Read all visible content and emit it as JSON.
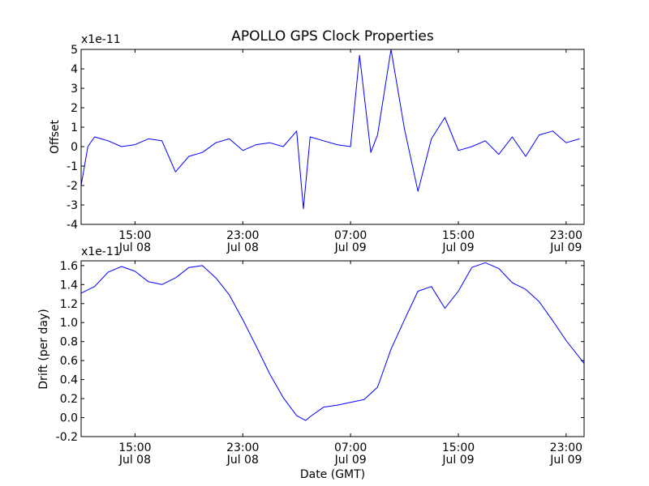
{
  "figure": {
    "title": "APOLLO GPS Clock Properties",
    "xlabel": "Date (GMT)"
  },
  "chart_data": [
    {
      "type": "line",
      "ylabel": "Offset",
      "offset_text": "x1e-11",
      "ylim": [
        -4,
        5
      ],
      "yticks": [
        -4,
        -3,
        -2,
        -1,
        0,
        1,
        2,
        3,
        4,
        5
      ],
      "xlim": [
        "Jul 08 11:00",
        "Jul 10 00:20"
      ],
      "xticks": [
        {
          "time": "15:00",
          "date": "Jul 08",
          "t": "Jul 08 15:00"
        },
        {
          "time": "23:00",
          "date": "Jul 08",
          "t": "Jul 08 23:00"
        },
        {
          "time": "07:00",
          "date": "Jul 09",
          "t": "Jul 09 07:00"
        },
        {
          "time": "15:00",
          "date": "Jul 09",
          "t": "Jul 09 15:00"
        },
        {
          "time": "23:00",
          "date": "Jul 09",
          "t": "Jul 09 23:00"
        }
      ],
      "series_color": "#0000ff",
      "series": [
        {
          "x": [
            "Jul 08 11:00",
            "Jul 08 11:30",
            "Jul 08 12:00",
            "Jul 08 13:00",
            "Jul 08 14:00",
            "Jul 08 15:00",
            "Jul 08 16:00",
            "Jul 08 17:00",
            "Jul 08 18:00",
            "Jul 08 19:00",
            "Jul 08 20:00",
            "Jul 08 21:00",
            "Jul 08 22:00",
            "Jul 08 23:00",
            "Jul 09 00:00",
            "Jul 09 01:00",
            "Jul 09 02:00",
            "Jul 09 03:00",
            "Jul 09 03:30",
            "Jul 09 04:00",
            "Jul 09 05:00",
            "Jul 09 06:00",
            "Jul 09 07:00",
            "Jul 09 07:40",
            "Jul 09 08:30",
            "Jul 09 09:00",
            "Jul 09 10:00",
            "Jul 09 11:00",
            "Jul 09 12:00",
            "Jul 09 13:00",
            "Jul 09 14:00",
            "Jul 09 15:00",
            "Jul 09 16:00",
            "Jul 09 17:00",
            "Jul 09 18:00",
            "Jul 09 19:00",
            "Jul 09 20:00",
            "Jul 09 21:00",
            "Jul 09 22:00",
            "Jul 09 23:00",
            "Jul 10 00:00"
          ],
          "y": [
            -2.0,
            0.0,
            0.5,
            0.3,
            0.0,
            0.1,
            0.4,
            0.3,
            -1.3,
            -0.5,
            -0.3,
            0.2,
            0.4,
            -0.2,
            0.1,
            0.2,
            0.0,
            0.8,
            -3.2,
            0.5,
            0.3,
            0.1,
            0.0,
            4.7,
            -0.3,
            0.6,
            5.0,
            0.9,
            -2.3,
            0.4,
            1.5,
            -0.2,
            0.0,
            0.3,
            -0.4,
            0.5,
            -0.5,
            0.6,
            0.8,
            0.2,
            0.4
          ]
        }
      ]
    },
    {
      "type": "line",
      "ylabel": "Drift (per day)",
      "offset_text": "x1e-11",
      "ylim": [
        -0.2,
        1.65
      ],
      "yticks": [
        -0.2,
        0.0,
        0.2,
        0.4,
        0.6,
        0.8,
        1.0,
        1.2,
        1.4,
        1.6
      ],
      "ytick_labels": [
        "-0.2",
        "0.0",
        "0.2",
        "0.4",
        "0.6",
        "0.8",
        "1.0",
        "1.2",
        "1.4",
        "1.6"
      ],
      "xlim": [
        "Jul 08 11:00",
        "Jul 10 00:20"
      ],
      "xticks": [
        {
          "time": "15:00",
          "date": "Jul 08",
          "t": "Jul 08 15:00"
        },
        {
          "time": "23:00",
          "date": "Jul 08",
          "t": "Jul 08 23:00"
        },
        {
          "time": "07:00",
          "date": "Jul 09",
          "t": "Jul 09 07:00"
        },
        {
          "time": "15:00",
          "date": "Jul 09",
          "t": "Jul 09 15:00"
        },
        {
          "time": "23:00",
          "date": "Jul 09",
          "t": "Jul 09 23:00"
        }
      ],
      "series_color": "#0000ff",
      "series": [
        {
          "x": [
            "Jul 08 11:00",
            "Jul 08 12:00",
            "Jul 08 13:00",
            "Jul 08 14:00",
            "Jul 08 15:00",
            "Jul 08 16:00",
            "Jul 08 17:00",
            "Jul 08 18:00",
            "Jul 08 19:00",
            "Jul 08 20:00",
            "Jul 08 21:00",
            "Jul 08 22:00",
            "Jul 08 23:00",
            "Jul 09 00:00",
            "Jul 09 01:00",
            "Jul 09 02:00",
            "Jul 09 03:00",
            "Jul 09 03:40",
            "Jul 09 04:00",
            "Jul 09 05:00",
            "Jul 09 06:00",
            "Jul 09 07:00",
            "Jul 09 08:00",
            "Jul 09 09:00",
            "Jul 09 10:00",
            "Jul 09 11:00",
            "Jul 09 12:00",
            "Jul 09 13:00",
            "Jul 09 14:00",
            "Jul 09 15:00",
            "Jul 09 16:00",
            "Jul 09 17:00",
            "Jul 09 18:00",
            "Jul 09 19:00",
            "Jul 09 20:00",
            "Jul 09 21:00",
            "Jul 09 22:00",
            "Jul 09 23:00",
            "Jul 10 00:00",
            "Jul 10 00:20"
          ],
          "y": [
            1.31,
            1.38,
            1.53,
            1.59,
            1.54,
            1.43,
            1.4,
            1.47,
            1.58,
            1.6,
            1.47,
            1.29,
            1.03,
            0.75,
            0.46,
            0.21,
            0.02,
            -0.03,
            0.01,
            0.11,
            0.13,
            0.16,
            0.19,
            0.32,
            0.72,
            1.03,
            1.33,
            1.38,
            1.15,
            1.33,
            1.58,
            1.63,
            1.57,
            1.42,
            1.35,
            1.22,
            1.02,
            0.81,
            0.63,
            0.57
          ]
        }
      ]
    }
  ]
}
